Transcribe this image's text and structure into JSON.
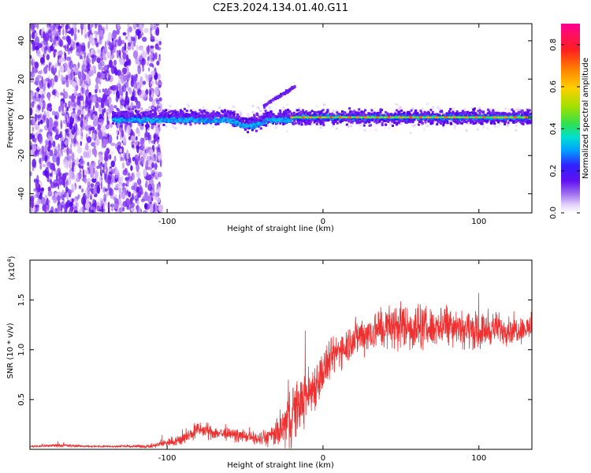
{
  "title": "C2E3.2024.134.01.40.G11",
  "chart_data": [
    {
      "type": "heatmap",
      "xlabel": "Height of straight line (km)",
      "ylabel": "Frequency (Hz)",
      "xlim": [
        -188,
        134
      ],
      "ylim": [
        -50,
        49
      ],
      "xticks": [
        -100,
        0,
        100
      ],
      "xtick_labels": [
        "-100",
        "0",
        "100"
      ],
      "yticks": [
        -40,
        -20,
        0,
        20,
        40
      ],
      "ytick_labels": [
        "-40",
        "-20",
        "0",
        "20",
        "40"
      ],
      "colorbar": {
        "label": "Normalized spectral amplitude",
        "range": [
          0.0,
          0.9
        ],
        "ticks": [
          0.0,
          0.2,
          0.4,
          0.6,
          0.8
        ],
        "tick_labels": [
          "0.0",
          "0.2",
          "0.4",
          "0.6",
          "0.8"
        ],
        "colormap": [
          "#ffffff",
          "#d8b8f8",
          "#8030f0",
          "#5000f0",
          "#2020ff",
          "#00b0ff",
          "#00e0c0",
          "#40e040",
          "#b0e000",
          "#ffd000",
          "#ff8000",
          "#ff2020",
          "#ff0080"
        ]
      },
      "features": {
        "noise_region_x": [
          -188,
          -110
        ],
        "signal_band_center_hz": 0,
        "signal_band_halfwidth_hz": 5,
        "strong_line_x": [
          -20,
          134
        ],
        "strong_line_hz": 0,
        "spur_x": [
          -38,
          -18
        ],
        "spur_hz": [
          6,
          16
        ]
      },
      "grid": false
    },
    {
      "type": "line",
      "xlabel": "Height of straight line (km)",
      "ylabel": "SNR (10 * v/v)",
      "y_multiplier_label": "(x10",
      "y_multiplier_exp": "4",
      "xlim": [
        -188,
        134
      ],
      "ylim": [
        0.0,
        1.9
      ],
      "xticks": [
        -100,
        0,
        100
      ],
      "xtick_labels": [
        "-100",
        "0",
        "100"
      ],
      "yticks": [
        0.5,
        1.0,
        1.5
      ],
      "ytick_labels": [
        "0.5",
        "1.0",
        "1.5"
      ],
      "color": "#ee3030",
      "envelope": {
        "x": [
          -188,
          -170,
          -150,
          -130,
          -110,
          -100,
          -90,
          -80,
          -70,
          -60,
          -50,
          -40,
          -30,
          -25,
          -20,
          -15,
          -10,
          -5,
          0,
          5,
          10,
          15,
          20,
          30,
          40,
          50,
          60,
          70,
          80,
          90,
          100,
          110,
          120,
          134
        ],
        "median": [
          0.03,
          0.04,
          0.03,
          0.03,
          0.03,
          0.07,
          0.1,
          0.2,
          0.17,
          0.15,
          0.13,
          0.1,
          0.15,
          0.22,
          0.35,
          0.45,
          0.55,
          0.65,
          0.78,
          0.9,
          1.0,
          1.05,
          1.12,
          1.18,
          1.22,
          1.25,
          1.22,
          1.22,
          1.28,
          1.22,
          1.18,
          1.22,
          1.2,
          1.22
        ],
        "spread": [
          0.01,
          0.02,
          0.01,
          0.01,
          0.02,
          0.05,
          0.07,
          0.09,
          0.08,
          0.07,
          0.06,
          0.08,
          0.14,
          0.3,
          0.4,
          0.3,
          0.3,
          0.28,
          0.26,
          0.22,
          0.2,
          0.22,
          0.22,
          0.22,
          0.25,
          0.28,
          0.26,
          0.22,
          0.24,
          0.22,
          0.2,
          0.18,
          0.16,
          0.14
        ]
      },
      "grid": false
    }
  ]
}
